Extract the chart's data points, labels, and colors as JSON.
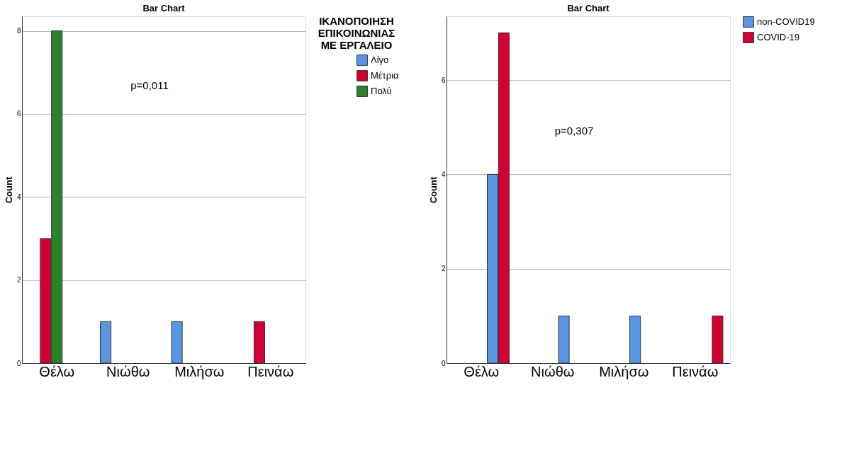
{
  "chart_data": [
    {
      "type": "bar",
      "title": "Bar Chart",
      "ylabel": "Count",
      "legend_title": "ΙΚΑΝΟΠΟΙΗΣΗ ΕΠΙΚΟΙΝΩΝΙΑΣ ΜΕ ΕΡΓΑΛΕΙΟ",
      "annotations": [
        "p=0,011"
      ],
      "categories": [
        "Θέλω",
        "Νιώθω",
        "Μιλήσω",
        "Πεινάω"
      ],
      "series": [
        {
          "name": "Λίγο",
          "color": "#5897e3",
          "values": [
            null,
            1,
            1,
            null
          ]
        },
        {
          "name": "Μέτρια",
          "color": "#d50032",
          "values": [
            3,
            null,
            null,
            1
          ]
        },
        {
          "name": "Πολύ",
          "color": "#28832a",
          "values": [
            8,
            null,
            null,
            null
          ]
        }
      ],
      "ylim": [
        0,
        8.35
      ],
      "yticks": [
        0,
        2,
        4,
        6,
        8
      ],
      "grid": "y",
      "legend": "top right"
    },
    {
      "type": "bar",
      "title": "Bar Chart",
      "ylabel": "Count",
      "annotations": [
        "p=0,307"
      ],
      "categories": [
        "Θέλω",
        "Νιώθω",
        "Μιλήσω",
        "Πεινάω"
      ],
      "series": [
        {
          "name": "non-COVID19",
          "color": "#5897e3",
          "values": [
            4,
            1,
            1,
            null
          ]
        },
        {
          "name": "COVID-19",
          "color": "#d50032",
          "values": [
            7,
            null,
            null,
            1
          ]
        }
      ],
      "ylim": [
        0,
        7.35
      ],
      "yticks": [
        0,
        2,
        4,
        6
      ],
      "grid": "y",
      "legend": "top right"
    }
  ]
}
